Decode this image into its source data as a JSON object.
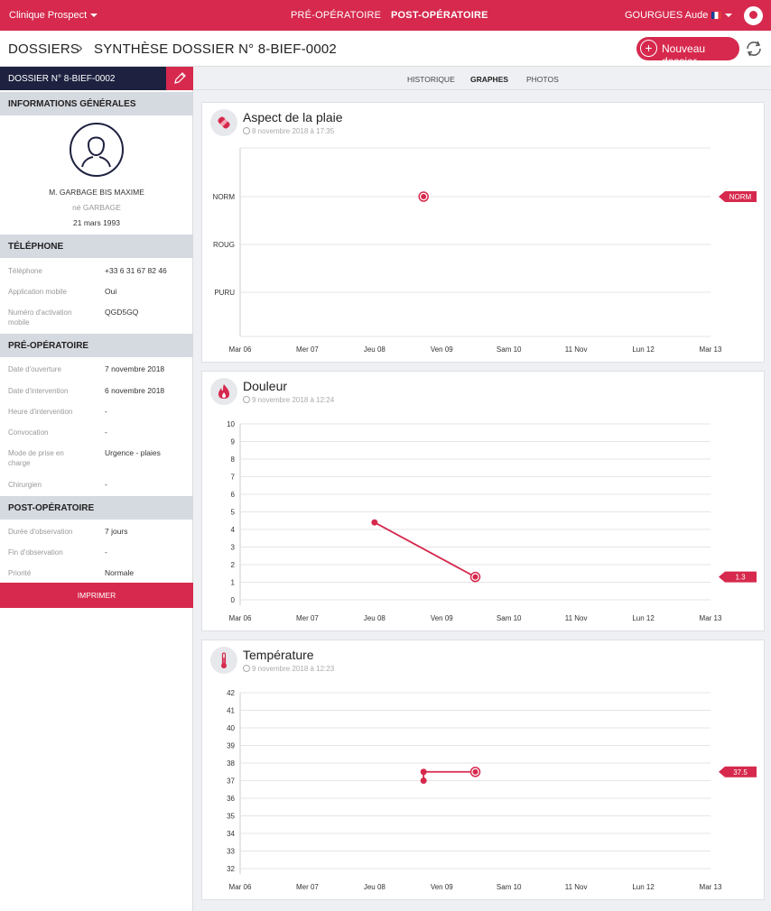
{
  "topbar": {
    "clinic": "Clinique Prospect",
    "nav_pre": "PRÉ-OPÉRATOIRE",
    "nav_post": "POST-OPÉRATOIRE",
    "user": "GOURGUES Aude"
  },
  "header": {
    "crumb_root": "DOSSIERS",
    "crumb_title": "SYNTHÈSE DOSSIER N° 8-BIEF-0002",
    "new_button": "Nouveau dossier"
  },
  "sidebar": {
    "dossier_label": "DOSSIER N° 8-BIEF-0002",
    "general": {
      "heading": "INFORMATIONS GÉNÉRALES",
      "name": "M. GARBAGE BIS MAXIME",
      "born_name": "né GARBAGE",
      "birthdate": "21 mars 1993"
    },
    "phone": {
      "heading": "TÉLÉPHONE",
      "rows": [
        {
          "label": "Téléphone",
          "value": "+33 6 31 67 82 46"
        },
        {
          "label": "Application mobile",
          "value": "Oui"
        },
        {
          "label": "Numéro d'activation mobile",
          "value": "QGD5GQ"
        }
      ]
    },
    "preop": {
      "heading": "PRÉ-OPÉRATOIRE",
      "rows": [
        {
          "label": "Date d'ouverture",
          "value": "7 novembre 2018"
        },
        {
          "label": "Date d'intervention",
          "value": "6 novembre 2018"
        },
        {
          "label": "Heure d'intervention",
          "value": "-"
        },
        {
          "label": "Convocation",
          "value": "-"
        },
        {
          "label": "Mode de prise en charge",
          "value": "Urgence - plaies"
        },
        {
          "label": "Chirurgien",
          "value": "-"
        }
      ]
    },
    "postop": {
      "heading": "POST-OPÉRATOIRE",
      "rows": [
        {
          "label": "Durée d'observation",
          "value": "7 jours"
        },
        {
          "label": "Fin d'observation",
          "value": "-"
        },
        {
          "label": "Priorité",
          "value": "Normale"
        }
      ]
    },
    "print_button": "IMPRIMER"
  },
  "tabs": [
    "HISTORIQUE",
    "GRAPHES",
    "PHOTOS"
  ],
  "colors": {
    "accent": "#d6294d",
    "navy": "#1e2240"
  },
  "chart_data": [
    {
      "type": "scatter",
      "title": "Aspect de la plaie",
      "subtitle": "8 novembre 2018 à 17:35",
      "categories": [
        "Mar 06",
        "Mer 07",
        "Jeu 08",
        "Ven 09",
        "Sam 10",
        "11 Nov",
        "Lun 12",
        "Mar 13"
      ],
      "y_categories": [
        "NORM",
        "ROUG",
        "PURU"
      ],
      "points": [
        {
          "x": 2.73,
          "y": "NORM"
        }
      ],
      "last_value": "NORM",
      "icon": "bandage-icon"
    },
    {
      "type": "line",
      "title": "Douleur",
      "subtitle": "9 novembre 2018 à 12:24",
      "categories": [
        "Mar 06",
        "Mer 07",
        "Jeu 08",
        "Ven 09",
        "Sam 10",
        "11 Nov",
        "Lun 12",
        "Mar 13"
      ],
      "ylim": [
        0,
        10
      ],
      "yticks": [
        "10",
        "9",
        "8",
        "7",
        "6",
        "5",
        "4",
        "3",
        "2",
        "1",
        "0"
      ],
      "points": [
        {
          "x": 2.0,
          "y": 4.4
        },
        {
          "x": 3.5,
          "y": 1.3
        }
      ],
      "last_value": "1.3",
      "icon": "flame-icon"
    },
    {
      "type": "line",
      "title": "Température",
      "subtitle": "9 novembre 2018 à 12:23",
      "categories": [
        "Mar 06",
        "Mer 07",
        "Jeu 08",
        "Ven 09",
        "Sam 10",
        "11 Nov",
        "Lun 12",
        "Mar 13"
      ],
      "ylim": [
        32,
        42
      ],
      "yticks": [
        "42",
        "41",
        "40",
        "39",
        "38",
        "37",
        "36",
        "35",
        "34",
        "33",
        "32"
      ],
      "points": [
        {
          "x": 2.73,
          "y": 37.0
        },
        {
          "x": 2.73,
          "y": 37.5
        },
        {
          "x": 3.5,
          "y": 37.5
        }
      ],
      "last_value": "37.5",
      "icon": "thermometer-icon"
    }
  ]
}
